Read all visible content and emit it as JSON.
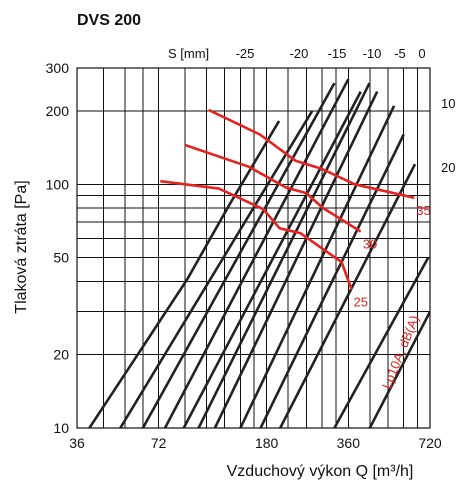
{
  "chart_data": {
    "type": "line",
    "title": "DVS 200",
    "xlabel": "Vzduchový výkon Q [m³/h]",
    "ylabel": "Tlaková ztráta [Pa]",
    "x_scale": "log",
    "y_scale": "log",
    "xlim": [
      36,
      720
    ],
    "ylim": [
      10,
      300
    ],
    "x_ticks": [
      36,
      72,
      180,
      360,
      720
    ],
    "x_tick_labels": [
      "36",
      "72",
      "180",
      "360",
      "720"
    ],
    "y_ticks": [
      10,
      20,
      50,
      100,
      200,
      300
    ],
    "y_tick_labels": [
      "10",
      "20",
      "50",
      "100",
      "200",
      "300"
    ],
    "x_grid": [
      36,
      45,
      54,
      63,
      72,
      90,
      108,
      126,
      144,
      162,
      180,
      216,
      252,
      288,
      324,
      360,
      432,
      504,
      576,
      648,
      720
    ],
    "y_grid": [
      10,
      20,
      30,
      40,
      50,
      60,
      70,
      80,
      90,
      100,
      200,
      300
    ],
    "grid": true,
    "s_label": "S [mm]",
    "s_series": [
      {
        "label": "-25",
        "points": [
          [
            40,
            10
          ],
          [
            92,
            41
          ],
          [
            130,
            81
          ],
          [
            200,
            182
          ]
        ]
      },
      {
        "label": "",
        "points": [
          [
            52,
            10
          ],
          [
            265,
            200
          ]
        ]
      },
      {
        "label": "",
        "points": [
          [
            63,
            10
          ],
          [
            320,
            260
          ]
        ]
      },
      {
        "label": "",
        "points": [
          [
            76,
            10
          ],
          [
            360,
            270
          ]
        ]
      },
      {
        "label": "-20",
        "points": [
          [
            89,
            10
          ],
          [
            400,
            240
          ]
        ]
      },
      {
        "label": "",
        "points": [
          [
            101,
            10
          ],
          [
            431,
            260
          ]
        ]
      },
      {
        "label": "-15",
        "points": [
          [
            116,
            10
          ],
          [
            460,
            240
          ]
        ]
      },
      {
        "label": "-10",
        "points": [
          [
            144,
            10
          ],
          [
            531,
            210
          ]
        ]
      },
      {
        "label": "-5",
        "points": [
          [
            171,
            10
          ],
          [
            576,
            160
          ]
        ]
      },
      {
        "label": "0",
        "points": [
          [
            202,
            10
          ],
          [
            634,
            121
          ]
        ]
      },
      {
        "label": "10",
        "points": [
          [
            320,
            10
          ],
          [
            709,
            50
          ]
        ]
      },
      {
        "label": "20",
        "points": [
          [
            432,
            10
          ],
          [
            720,
            30
          ]
        ]
      }
    ],
    "s_side_labels": [
      "10",
      "20"
    ],
    "iso_label": "Lp10A, dB(A)",
    "iso_series": [
      {
        "label": "35",
        "points": [
          [
            110,
            202
          ],
          [
            170,
            160
          ],
          [
            230,
            125
          ],
          [
            286,
            116
          ],
          [
            380,
            100
          ],
          [
            630,
            88
          ]
        ]
      },
      {
        "label": "30",
        "points": [
          [
            90,
            145
          ],
          [
            155,
            118
          ],
          [
            212,
            97
          ],
          [
            252,
            92
          ],
          [
            290,
            80
          ],
          [
            400,
            64
          ]
        ]
      },
      {
        "label": "25",
        "points": [
          [
            73,
            103
          ],
          [
            120,
            96
          ],
          [
            175,
            79
          ],
          [
            201,
            66
          ],
          [
            240,
            63
          ],
          [
            285,
            55
          ],
          [
            340,
            48
          ],
          [
            370,
            37
          ]
        ]
      }
    ],
    "colors": {
      "iso_lines": "#e52420",
      "s_lines": "#222222",
      "grid": "#111111"
    }
  }
}
